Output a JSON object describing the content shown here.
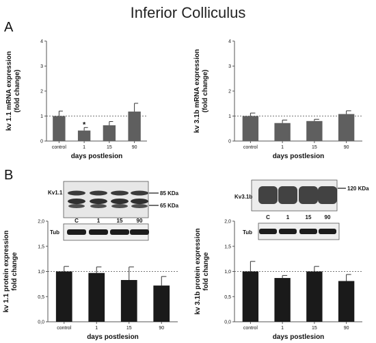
{
  "title": "Inferior Colliculus",
  "panel_labels": [
    "A",
    "B"
  ],
  "colors": {
    "mrna_bar": "#5f5f5f",
    "protein_bar": "#1a1a1a",
    "reference_line": "#444444",
    "blot_band": "#1c1c1c",
    "blot_background": "#eeeeee"
  },
  "blots": [
    {
      "target": "Kv1.1",
      "lanes": [
        "C",
        "1",
        "15",
        "90"
      ],
      "markers": [
        "85 KDa",
        "65 KDa"
      ],
      "loading_control": "Tub"
    },
    {
      "target": "Kv3.1b",
      "lanes": [
        "C",
        "1",
        "15",
        "90"
      ],
      "markers": [
        "120 KDa"
      ],
      "loading_control": "Tub"
    }
  ],
  "chart_data": [
    {
      "type": "bar",
      "panel": "A",
      "categories": [
        "control",
        "1",
        "15",
        "90"
      ],
      "values": [
        1.0,
        0.42,
        0.63,
        1.18
      ],
      "errors": [
        0.2,
        0.12,
        0.15,
        0.33
      ],
      "significance": [
        "",
        "*",
        "",
        ""
      ],
      "xlabel": "days postlesion",
      "ylabel_lines": [
        "kv 1.1 mRNA expression",
        "(fold change)"
      ],
      "yticks": [
        "0",
        "1",
        "2",
        "3",
        "4"
      ],
      "ylim": [
        0,
        4
      ],
      "reference_line": 1,
      "grid": false
    },
    {
      "type": "bar",
      "panel": "A",
      "categories": [
        "control",
        "1",
        "15",
        "90"
      ],
      "values": [
        1.0,
        0.72,
        0.8,
        1.08
      ],
      "errors": [
        0.12,
        0.12,
        0.07,
        0.13
      ],
      "significance": [
        "",
        "",
        "",
        ""
      ],
      "xlabel": "days postlesion",
      "ylabel_lines": [
        "kv 3.1b mRNA expression",
        "(fold change)"
      ],
      "yticks": [
        "0",
        "1",
        "2",
        "3",
        "4"
      ],
      "ylim": [
        0,
        4
      ],
      "reference_line": 1,
      "grid": false
    },
    {
      "type": "bar",
      "panel": "B",
      "categories": [
        "control",
        "1",
        "15",
        "90"
      ],
      "values": [
        1.0,
        0.97,
        0.83,
        0.72
      ],
      "errors": [
        0.1,
        0.12,
        0.26,
        0.18
      ],
      "significance": [
        "",
        "",
        "",
        ""
      ],
      "xlabel": "days postlesion",
      "ylabel_lines": [
        "kv 1.1 protein expression",
        "fold change"
      ],
      "yticks": [
        "0,0",
        "0,5",
        "1,0",
        "1,5",
        "2,0"
      ],
      "ylim": [
        0,
        2
      ],
      "reference_line": 1,
      "grid": false
    },
    {
      "type": "bar",
      "panel": "B",
      "categories": [
        "control",
        "1",
        "15",
        "90"
      ],
      "values": [
        1.0,
        0.87,
        1.0,
        0.81
      ],
      "errors": [
        0.2,
        0.05,
        0.1,
        0.13
      ],
      "significance": [
        "",
        "",
        "",
        ""
      ],
      "xlabel": "days postlesion",
      "ylabel_lines": [
        "kv 3.1b protein expression",
        "fold change"
      ],
      "yticks": [
        "0,0",
        "0,5",
        "1,0",
        "1,5",
        "2,0"
      ],
      "ylim": [
        0,
        2
      ],
      "reference_line": 1,
      "grid": false
    }
  ]
}
